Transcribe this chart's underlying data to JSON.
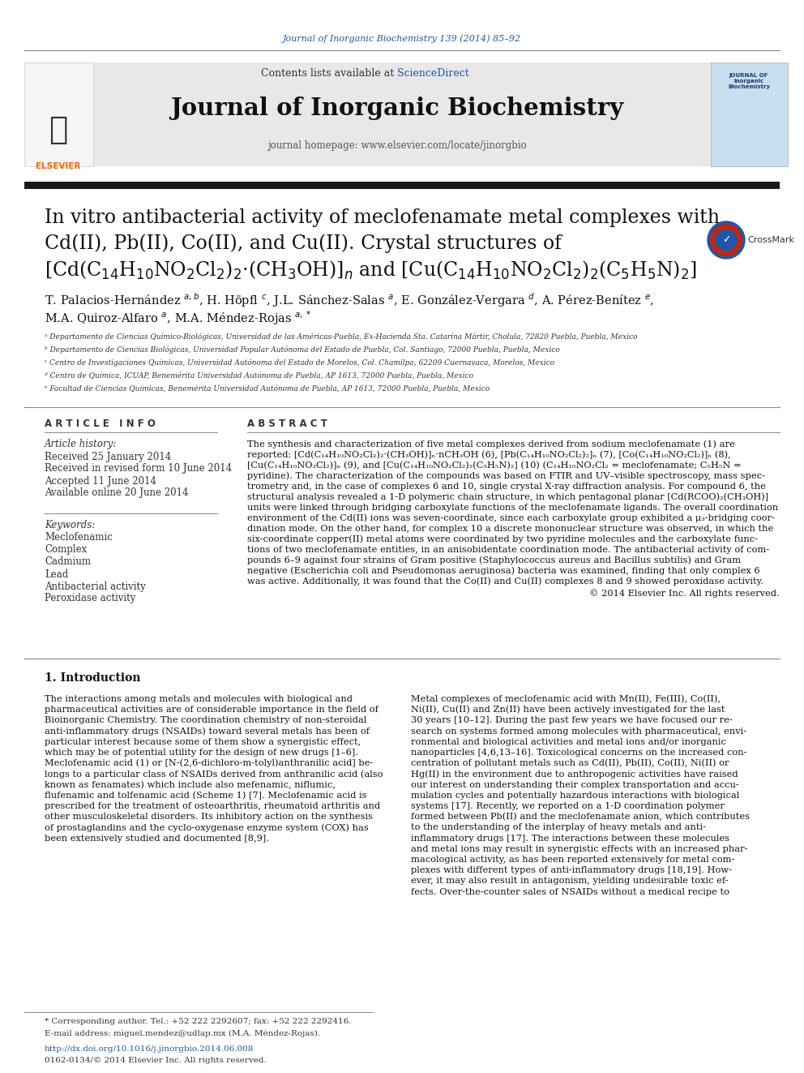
{
  "page_bg": "#ffffff",
  "journal_ref_color": "#2255aa",
  "journal_ref": "Journal of Inorganic Biochemistry 139 (2014) 85–92",
  "header_bg": "#e8e8e8",
  "contents_text": "Contents lists available at ",
  "sciencedirect_text": "ScienceDirect",
  "sciencedirect_color": "#2255aa",
  "journal_name": "Journal of Inorganic Biochemistry",
  "homepage_text": "journal homepage: www.elsevier.com/locate/jinorgbio",
  "thick_bar_color": "#1a1a1a",
  "title_line1": "In vitro antibacterial activity of meclofenamate metal complexes with",
  "title_line2": "Cd(II), Pb(II), Co(II), and Cu(II). Crystal structures of",
  "title_line3": "[Cd(C$_{14}$H$_{10}$NO$_2$Cl$_2$)$_2$·(CH$_3$OH)]$_n$ and [Cu(C$_{14}$H$_{10}$NO$_2$Cl$_2$)$_2$(C$_5$H$_5$N)$_2$]",
  "article_info_title": "A R T I C L E   I N F O",
  "abstract_title": "A B S T R A C T",
  "article_history_label": "Article history:",
  "received": "Received 25 January 2014",
  "revised": "Received in revised form 10 June 2014",
  "accepted": "Accepted 11 June 2014",
  "online": "Available online 20 June 2014",
  "keywords_label": "Keywords:",
  "keywords": [
    "Meclofenamic",
    "Complex",
    "Cadmium",
    "Lead",
    "Antibacterial activity",
    "Peroxidase activity"
  ],
  "copyright": "© 2014 Elsevier Inc. All rights reserved.",
  "intro_title": "1. Introduction",
  "doi_text": "http://dx.doi.org/10.1016/j.jinorgbio.2014.06.008",
  "doi_color": "#2255aa",
  "issn_text": "0162-0134/© 2014 Elsevier Inc. All rights reserved.",
  "footnote_text": "* Corresponding author. Tel.: +52 222 2292607; fax: +52 222 2292416.",
  "footnote_email": "E-mail address: miguel.mendez@udlap.mx (M.A. Méndez-Rojas).",
  "affil_a": "ᵃ Departamento de Ciencias Químico-Biológicas, Universidad de las Américas-Puebla, Ex-Hacienda Sta. Catarina Mártir, Cholula, 72820 Puebla, Puebla, Mexico",
  "affil_b": "ᵇ Departamento de Ciencias Biológicas, Universidad Popular Autónoma del Estado de Puebla, Col. Santiago, 72000 Puebla, Puebla, Mexico",
  "affil_c": "ᶜ Centro de Investigaciones Químicas, Universidad Autónoma del Estado de Morelos, Col. Chamilpa, 62209 Cuernavaca, Morelos, Mexico",
  "affil_d": "ᵈ Centro de Química, ICUAP, Benemérita Universidad Autónoma de Puebla, AP 1613, 72000 Puebla, Puebla, Mexico",
  "affil_e": "ᵉ Facultad de Ciencias Químicas, Benemérita Universidad Autónoma de Puebla, AP 1613, 72000 Puebla, Puebla, Mexico",
  "abstract_lines": [
    "The synthesis and characterization of five metal complexes derived from sodium meclofenamate (1) are",
    "reported: [Cd(C₁₄H₁₀NO₂Cl₂)₂·(CH₃OH)]ₙ·nCH₃OH (6), [Pb(C₁₄H₁₀NO₂Cl₂)₂]ₙ (7), [Co(C₁₄H₁₀NO₂Cl₂)]ₙ (8),",
    "[Cu(C₁₄H₁₀NO₂Cl₂)]ₙ (9), and [Cu(C₁₄H₁₀NO₂Cl₂)₂(C₅H₅N)₂] (10) (C₁₄H₁₀NO₂Cl₂ = meclofenamate; C₅H₅N =",
    "pyridine). The characterization of the compounds was based on FTIR and UV–visible spectroscopy, mass spec-",
    "trometry and, in the case of complexes 6 and 10, single crystal X-ray diffraction analysis. For compound 6, the",
    "structural analysis revealed a 1-D polymeric chain structure, in which pentagonal planar [Cd(RCOO)₂(CH₃OH)]",
    "units were linked through bridging carboxylate functions of the meclofenamate ligands. The overall coordination",
    "environment of the Cd(II) ions was seven-coordinate, since each carboxylate group exhibited a μ₃-bridging coor-",
    "dination mode. On the other hand, for complex 10 a discrete mononuclear structure was observed, in which the",
    "six-coordinate copper(II) metal atoms were coordinated by two pyridine molecules and the carboxylate func-",
    "tions of two meclofenamate entities, in an anisobidentate coordination mode. The antibacterial activity of com-",
    "pounds 6–9 against four strains of Gram positive (Staphylococcus aureus and Bacillus subtilis) and Gram",
    "negative (Escherichia coli and Pseudomonas aeruginosa) bacteria was examined, finding that only complex 6",
    "was active. Additionally, it was found that the Co(II) and Cu(II) complexes 8 and 9 showed peroxidase activity."
  ],
  "intro_left_lines": [
    "The interactions among metals and molecules with biological and",
    "pharmaceutical activities are of considerable importance in the field of",
    "Bioinorganic Chemistry. The coordination chemistry of non-steroidal",
    "anti-inflammatory drugs (NSAIDs) toward several metals has been of",
    "particular interest because some of them show a synergistic effect,",
    "which may be of potential utility for the design of new drugs [1–6].",
    "Meclofenamic acid (1) or [N-(2,6-dichloro-m-tolyl)anthranilic acid] be-",
    "longs to a particular class of NSAIDs derived from anthranilic acid (also",
    "known as fenamates) which include also mefenamic, niflumic,",
    "flufenamic and tolfenamic acid (Scheme 1) [7]. Meclofenamic acid is",
    "prescribed for the treatment of osteoarthritis, rheumatoid arthritis and",
    "other musculoskeletal disorders. Its inhibitory action on the synthesis",
    "of prostaglandins and the cyclo-oxygenase enzyme system (COX) has",
    "been extensively studied and documented [8,9]."
  ],
  "intro_right_lines": [
    "Metal complexes of meclofenamic acid with Mn(II), Fe(III), Co(II),",
    "Ni(II), Cu(II) and Zn(II) have been actively investigated for the last",
    "30 years [10–12]. During the past few years we have focused our re-",
    "search on systems formed among molecules with pharmaceutical, envi-",
    "ronmental and biological activities and metal ions and/or inorganic",
    "nanoparticles [4,6,13–16]. Toxicological concerns on the increased con-",
    "centration of pollutant metals such as Cd(II), Pb(II), Co(II), Ni(II) or",
    "Hg(II) in the environment due to anthropogenic activities have raised",
    "our interest on understanding their complex transportation and accu-",
    "mulation cycles and potentially hazardous interactions with biological",
    "systems [17]. Recently, we reported on a 1-D coordination polymer",
    "formed between Pb(II) and the meclofenamate anion, which contributes",
    "to the understanding of the interplay of heavy metals and anti-",
    "inflammatory drugs [17]. The interactions between these molecules",
    "and metal ions may result in synergistic effects with an increased phar-",
    "macological activity, as has been reported extensively for metal com-",
    "plexes with different types of anti-inflammatory drugs [18,19]. How-",
    "ever, it may also result in antagonism, yielding undesirable toxic ef-",
    "fects. Over-the-counter sales of NSAIDs without a medical recipe to"
  ]
}
